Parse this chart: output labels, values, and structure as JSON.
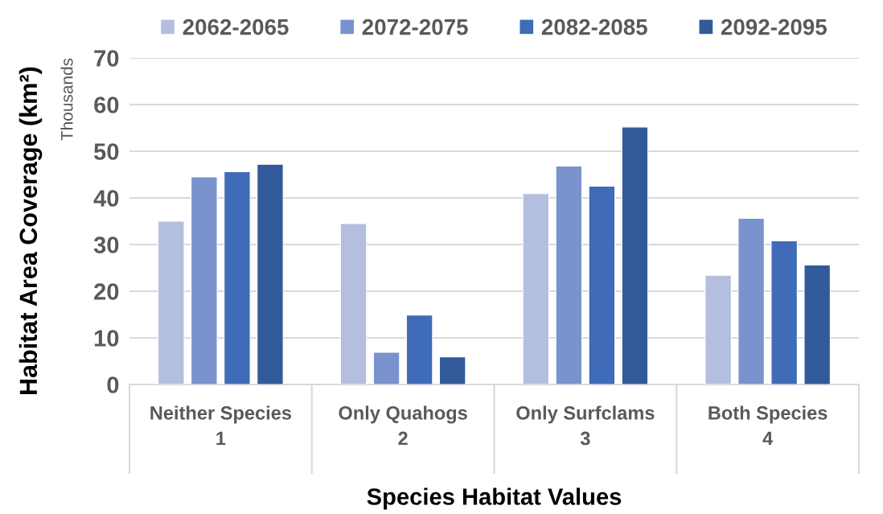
{
  "chart_data": {
    "type": "bar",
    "xlabel": "Species Habitat Values",
    "ylabel": "Habitat Area Coverage (km²)",
    "categories": [
      "Neither Species",
      "Only Quahogs",
      "Only Surfclams",
      "Both Species"
    ],
    "series": [
      {
        "name": "2062-2065",
        "color": "#b4bfdf",
        "values": [
          35.0,
          34.5,
          40.9,
          23.4
        ]
      },
      {
        "name": "2072-2075",
        "color": "#7a92cd",
        "values": [
          44.5,
          6.9,
          46.8,
          35.6
        ]
      },
      {
        "name": "2082-2085",
        "color": "#3f6bb8",
        "values": [
          45.6,
          14.9,
          42.5,
          30.8
        ]
      },
      {
        "name": "2092-2095",
        "color": "#325a9a",
        "values": [
          47.2,
          5.9,
          55.2,
          25.6
        ]
      }
    ],
    "ylim": [
      0,
      70
    ],
    "yticks": [
      0,
      10,
      20,
      30,
      40,
      50,
      60,
      70
    ],
    "grid": "y",
    "legend": "top",
    "annotations": [
      "Thousands",
      "1",
      "2",
      "3",
      "4"
    ]
  }
}
